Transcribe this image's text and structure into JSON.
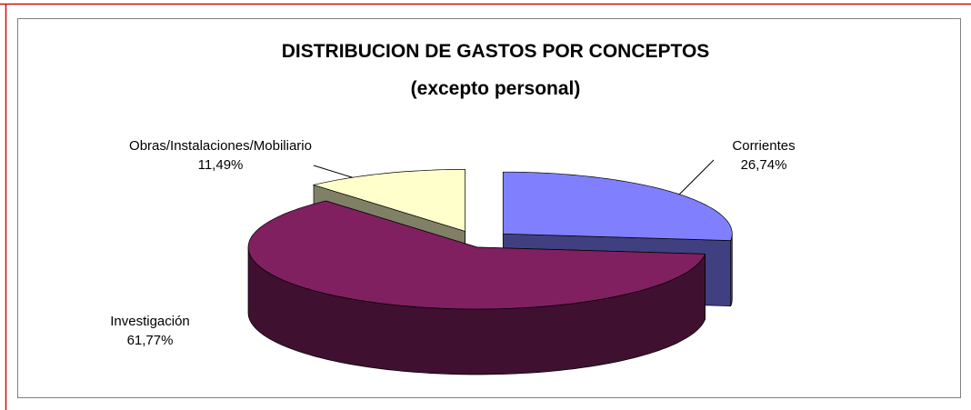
{
  "chart_data": {
    "type": "pie",
    "title": "DISTRIBUCION DE GASTOS POR CONCEPTOS",
    "subtitle": "(excepto personal)",
    "categories": [
      "Corrientes",
      "Investigación",
      "Obras/Instalaciones/Mobiliario"
    ],
    "values": [
      26.74,
      61.77,
      11.49
    ],
    "value_labels": [
      "26,74%",
      "61,77%",
      "11,49%"
    ],
    "colors": [
      "#8080ff",
      "#802060",
      "#ffffcc"
    ],
    "exploded": [
      true,
      false,
      true
    ]
  }
}
